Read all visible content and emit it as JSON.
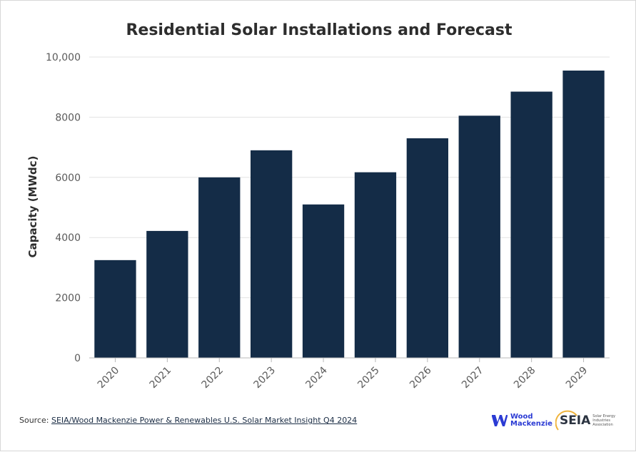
{
  "chart_data": {
    "type": "bar",
    "title": "Residential Solar Installations and Forecast",
    "xlabel": "",
    "ylabel": "Capacity (MWdc)",
    "categories": [
      "2020",
      "2021",
      "2022",
      "2023",
      "2024",
      "2025",
      "2026",
      "2027",
      "2028",
      "2029"
    ],
    "values": [
      3250,
      4220,
      6000,
      6900,
      5100,
      6170,
      7300,
      8050,
      8850,
      9550
    ],
    "ylim": [
      0,
      10000
    ],
    "yticks": [
      0,
      2000,
      4000,
      6000,
      8000,
      10000
    ],
    "ytick_labels": [
      "0",
      "2000",
      "4000",
      "6000",
      "8000",
      "10,000"
    ],
    "grid": true,
    "bar_color": "#142c47"
  },
  "footer": {
    "source_prefix": "Source: ",
    "source_link": "SEIA/Wood Mackenzie Power & Renewables U.S. Solar Market Insight Q4 2024",
    "logo_wood": "Wood",
    "logo_mackenzie": "Mackenzie",
    "logo_seia": "SEIA",
    "logo_seia_sub": "Solar Energy Industries Association",
    "wm_color": "#2b3bd4",
    "seia_arc_color": "#f0b43c"
  }
}
